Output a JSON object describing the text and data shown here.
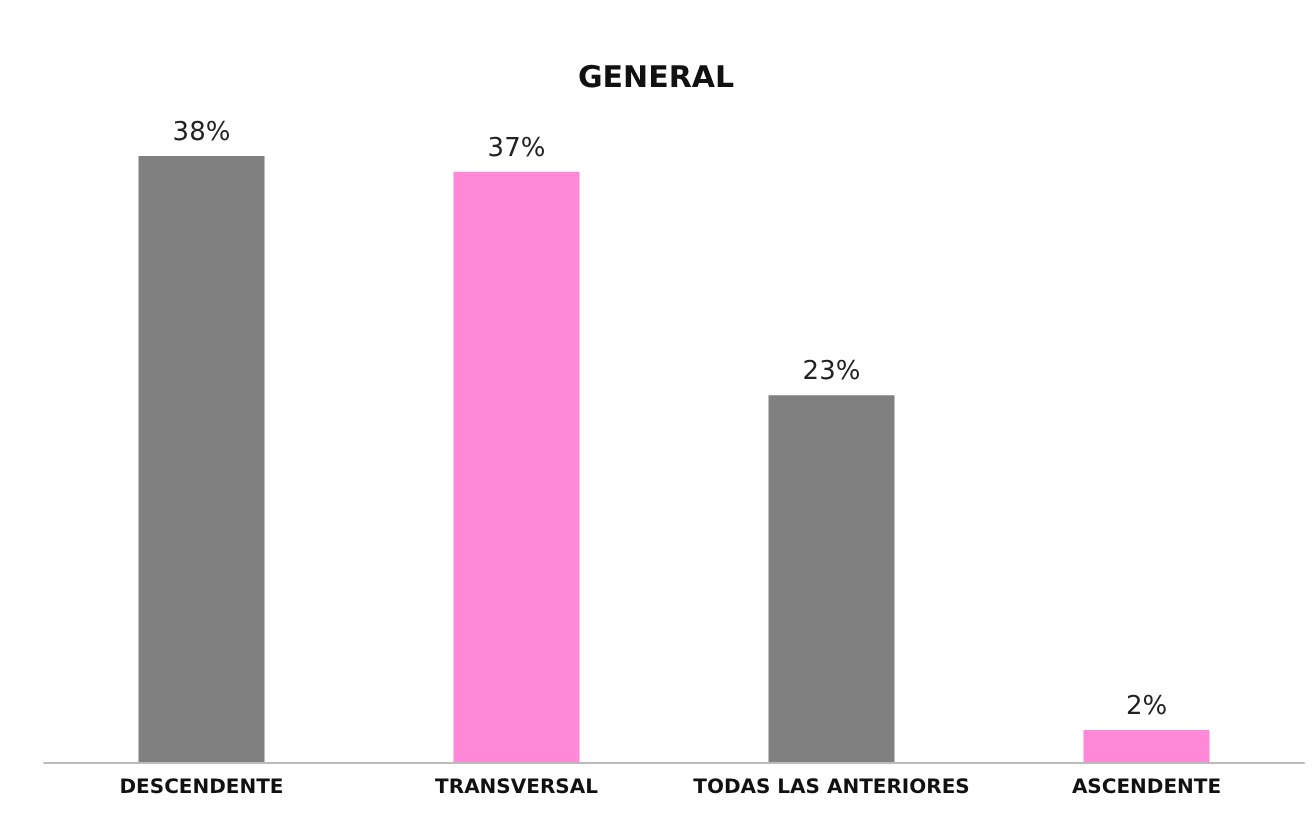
{
  "chart_data": {
    "type": "bar",
    "title": "GENERAL",
    "categories": [
      "DESCENDENTE",
      "TRANSVERSAL",
      "TODAS LAS ANTERIORES",
      "ASCENDENTE"
    ],
    "values": [
      38,
      37,
      23,
      2
    ],
    "colors": [
      "#808080",
      "#ff88d8",
      "#808080",
      "#ff88d8"
    ],
    "value_labels": [
      "38%",
      "37%",
      "23%",
      "2%"
    ]
  }
}
